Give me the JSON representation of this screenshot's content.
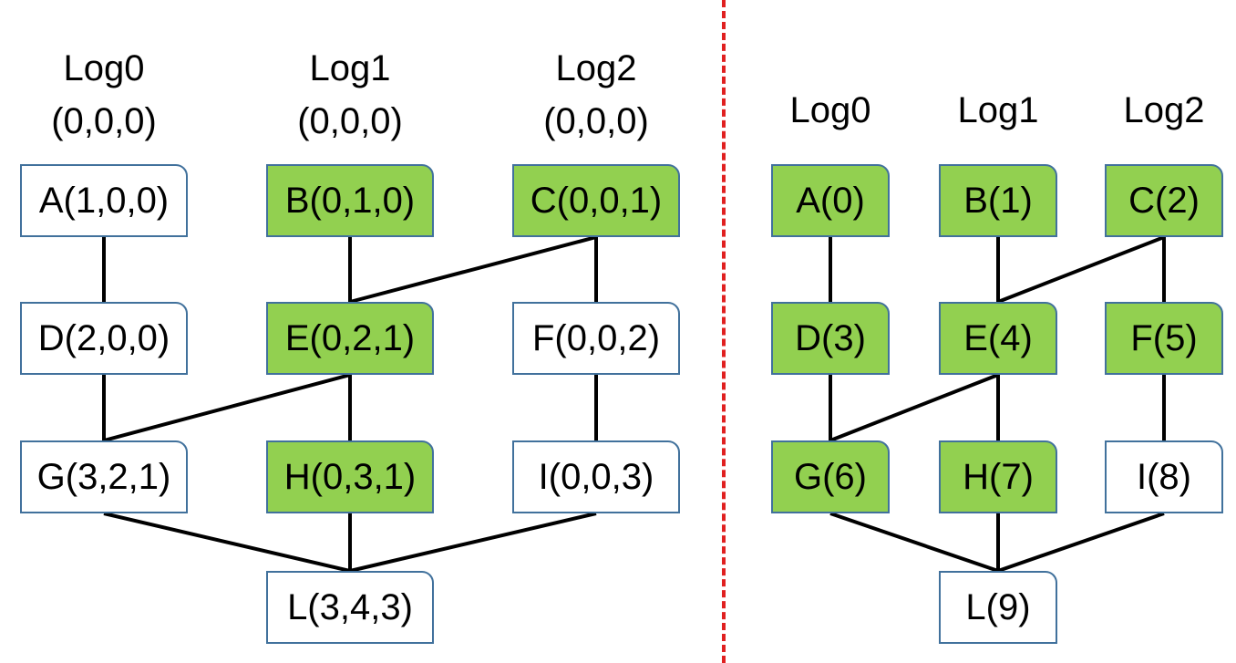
{
  "colors": {
    "green_fill": "#92d050",
    "white_fill": "#ffffff",
    "node_border": "#41719c",
    "edge": "#000000",
    "divider": "#e02020"
  },
  "left": {
    "headers": [
      {
        "name": "Log0",
        "clock": "(0,0,0)"
      },
      {
        "name": "Log1",
        "clock": "(0,0,0)"
      },
      {
        "name": "Log2",
        "clock": "(0,0,0)"
      }
    ],
    "nodes": {
      "A": {
        "label": "A(1,0,0)",
        "highlighted": false
      },
      "B": {
        "label": "B(0,1,0)",
        "highlighted": true
      },
      "C": {
        "label": "C(0,0,1)",
        "highlighted": true
      },
      "D": {
        "label": "D(2,0,0)",
        "highlighted": false
      },
      "E": {
        "label": "E(0,2,1)",
        "highlighted": true
      },
      "F": {
        "label": "F(0,0,2)",
        "highlighted": false
      },
      "G": {
        "label": "G(3,2,1)",
        "highlighted": false
      },
      "H": {
        "label": "H(0,3,1)",
        "highlighted": true
      },
      "I": {
        "label": "I(0,0,3)",
        "highlighted": false
      },
      "L": {
        "label": "L(3,4,3)",
        "highlighted": false
      }
    },
    "edges": [
      [
        "A",
        "D"
      ],
      [
        "D",
        "G"
      ],
      [
        "B",
        "E"
      ],
      [
        "E",
        "H"
      ],
      [
        "C",
        "F"
      ],
      [
        "F",
        "I"
      ],
      [
        "C",
        "E"
      ],
      [
        "E",
        "G"
      ],
      [
        "G",
        "L"
      ],
      [
        "H",
        "L"
      ],
      [
        "I",
        "L"
      ]
    ]
  },
  "right": {
    "headers": [
      {
        "name": "Log0"
      },
      {
        "name": "Log1"
      },
      {
        "name": "Log2"
      }
    ],
    "nodes": {
      "A": {
        "label": "A(0)",
        "highlighted": true
      },
      "B": {
        "label": "B(1)",
        "highlighted": true
      },
      "C": {
        "label": "C(2)",
        "highlighted": true
      },
      "D": {
        "label": "D(3)",
        "highlighted": true
      },
      "E": {
        "label": "E(4)",
        "highlighted": true
      },
      "F": {
        "label": "F(5)",
        "highlighted": true
      },
      "G": {
        "label": "G(6)",
        "highlighted": true
      },
      "H": {
        "label": "H(7)",
        "highlighted": true
      },
      "I": {
        "label": "I(8)",
        "highlighted": false
      },
      "L": {
        "label": "L(9)",
        "highlighted": false
      }
    },
    "edges": [
      [
        "A",
        "D"
      ],
      [
        "D",
        "G"
      ],
      [
        "B",
        "E"
      ],
      [
        "E",
        "H"
      ],
      [
        "C",
        "F"
      ],
      [
        "F",
        "I"
      ],
      [
        "C",
        "E"
      ],
      [
        "E",
        "G"
      ],
      [
        "G",
        "L"
      ],
      [
        "H",
        "L"
      ],
      [
        "I",
        "L"
      ]
    ]
  }
}
